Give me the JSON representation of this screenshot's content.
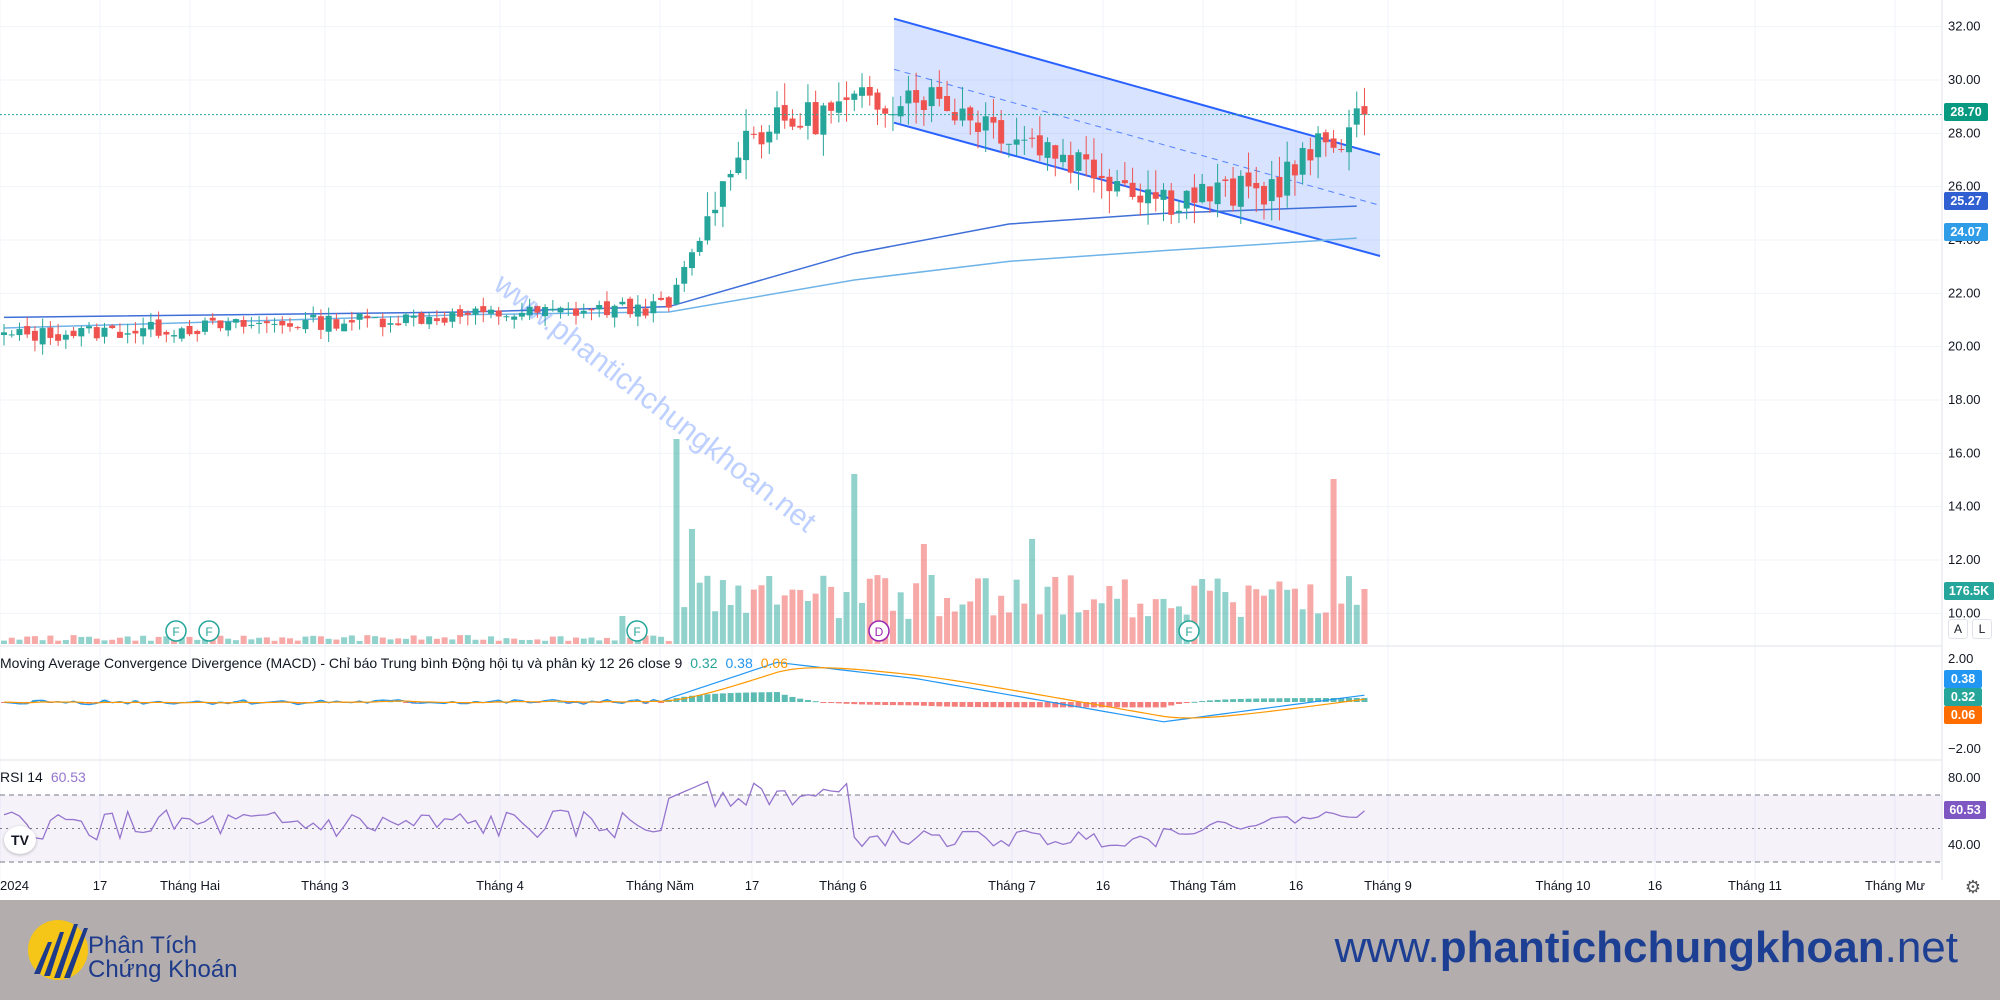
{
  "price_axis": {
    "ticks": [
      "32.00",
      "30.00",
      "28.00",
      "26.00",
      "24.00",
      "22.00",
      "20.00",
      "18.00",
      "16.00",
      "14.00",
      "12.00",
      "10.00"
    ],
    "last_price": "28.70",
    "ma_label_1": "25.27",
    "ma_label_2": "24.07",
    "volume_label": "176.5K",
    "btn_a": "A",
    "btn_l": "L"
  },
  "macd": {
    "title": "Moving Average Convergence Divergence (MACD) - Chỉ báo Trung bình Động hội tụ và phân kỳ 12 26 close 9",
    "v1": "0.32",
    "v2": "0.38",
    "v3": "0.06",
    "axis_top": "2.00",
    "axis_bottom": "−2.00",
    "badge_macd": "0.38",
    "badge_signal": "0.32",
    "badge_hist": "0.06"
  },
  "rsi": {
    "title": "RSI 14",
    "value": "60.53",
    "axis_top": "80.00",
    "axis_bottom": "40.00",
    "badge": "60.53"
  },
  "time_axis": [
    "2024",
    "17",
    "Tháng Hai",
    "Tháng 3",
    "Tháng 4",
    "Tháng Năm",
    "17",
    "Tháng 6",
    "Tháng 7",
    "16",
    "Tháng Tám",
    "16",
    "Tháng 9",
    "Tháng 10",
    "16",
    "Tháng 11",
    "Tháng Mư"
  ],
  "markers": [
    "F",
    "F",
    "F",
    "D",
    "F"
  ],
  "watermark": "www.phantichchungkhoan.net",
  "footer": {
    "brand_line1": "Phân Tích",
    "brand_line2": "Chứng Khoán",
    "url_prefix": "www.",
    "url_bold": "phantichchungkhoan",
    "url_suffix": ".net"
  },
  "colors": {
    "up": "#26a69a",
    "down": "#ef5350",
    "channel": "#2962ff",
    "ma1": "#3f6fd8",
    "ma2": "#6fb4e8",
    "rsi_line": "#9575cd",
    "macd_line": "#2196f3",
    "signal_line": "#ff9800"
  },
  "chart_data": {
    "type": "candlestick",
    "price_range": [
      9,
      33
    ],
    "channel": {
      "upper_start": 32.3,
      "upper_end": 27.2,
      "lower_start": 28.4,
      "lower_end": 23.4,
      "mid_start": 30.4,
      "mid_end": 25.3
    },
    "series": [
      {
        "name": "price",
        "segments": [
          {
            "from": 0,
            "to": 86,
            "start": 20.4,
            "end": 21.5
          },
          {
            "from": 86,
            "to": 96,
            "start": 21.5,
            "end": 28.0
          },
          {
            "from": 96,
            "to": 118,
            "start": 28.0,
            "end": 29.6
          },
          {
            "from": 118,
            "to": 150,
            "start": 29.6,
            "end": 25.6
          },
          {
            "from": 150,
            "to": 163,
            "start": 25.6,
            "end": 25.8
          },
          {
            "from": 163,
            "to": 176,
            "start": 25.8,
            "end": 28.7
          }
        ]
      }
    ],
    "ma_series": [
      {
        "name": "MA1",
        "points": [
          [
            0,
            21.1
          ],
          [
            60,
            21.3
          ],
          [
            86,
            21.5
          ],
          [
            110,
            23.5
          ],
          [
            130,
            24.6
          ],
          [
            150,
            25.0
          ],
          [
            175,
            25.27
          ]
        ]
      },
      {
        "name": "MA2",
        "points": [
          [
            0,
            20.7
          ],
          [
            60,
            21.2
          ],
          [
            86,
            21.3
          ],
          [
            110,
            22.5
          ],
          [
            130,
            23.2
          ],
          [
            150,
            23.6
          ],
          [
            175,
            24.07
          ]
        ]
      }
    ],
    "rsi": {
      "overbought": 70,
      "oversold": 30,
      "last": 60.53
    },
    "macd": {
      "macd": 0.38,
      "signal": 0.32,
      "hist": 0.06
    }
  }
}
